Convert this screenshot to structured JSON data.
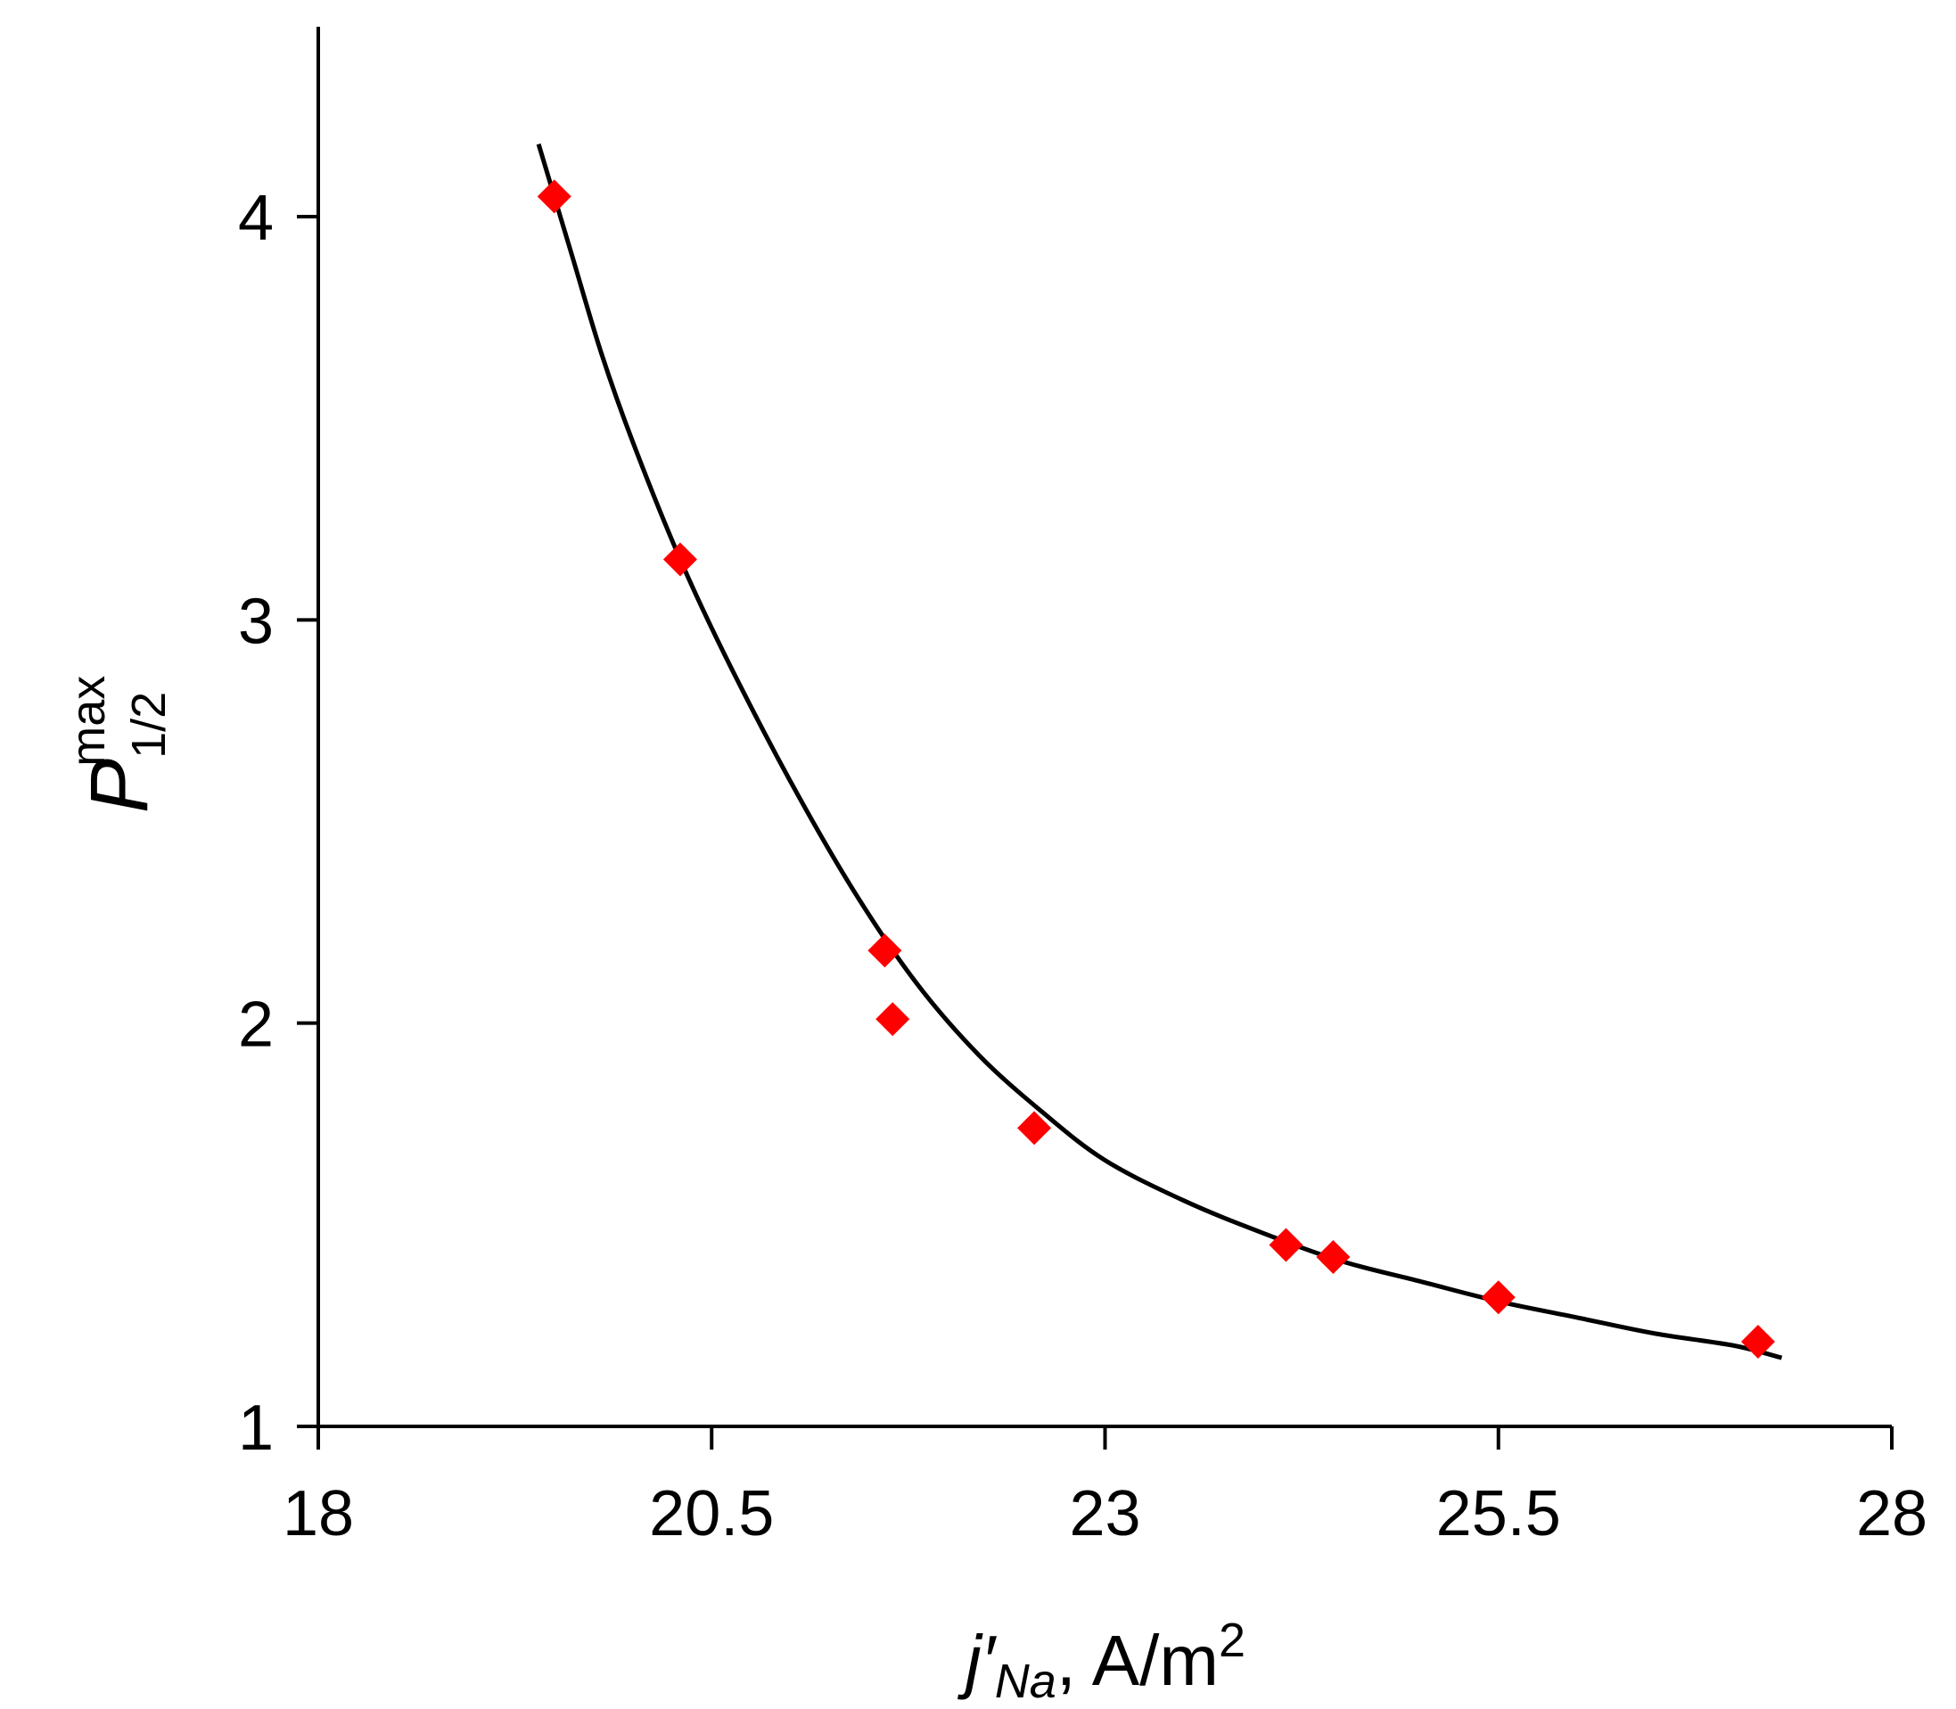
{
  "chart_data": {
    "type": "scatter",
    "title": "",
    "xlabel": {
      "main": "j′",
      "sub": "Na",
      "unit": ", A/m",
      "sup": "2"
    },
    "ylabel": {
      "main": "P",
      "sub": "1/2",
      "sup": "max"
    },
    "xlim": [
      18,
      28
    ],
    "ylim": [
      1,
      4.4
    ],
    "x_ticks": [
      18,
      20.5,
      23,
      25.5,
      28
    ],
    "y_ticks": [
      1,
      2,
      3,
      4
    ],
    "x_tick_labels": [
      "18",
      "20.5",
      "23",
      "25.5",
      "28"
    ],
    "y_tick_labels": [
      "1",
      "2",
      "3",
      "4"
    ],
    "grid": false,
    "points": [
      {
        "x": 19.5,
        "y": 4.05
      },
      {
        "x": 20.3,
        "y": 3.15
      },
      {
        "x": 21.6,
        "y": 2.18
      },
      {
        "x": 21.65,
        "y": 2.01
      },
      {
        "x": 22.55,
        "y": 1.74
      },
      {
        "x": 24.15,
        "y": 1.45
      },
      {
        "x": 24.45,
        "y": 1.42
      },
      {
        "x": 25.5,
        "y": 1.32
      },
      {
        "x": 27.15,
        "y": 1.21
      }
    ],
    "fit_curve": [
      {
        "x": 19.4,
        "y": 4.18
      },
      {
        "x": 19.6,
        "y": 3.92
      },
      {
        "x": 19.8,
        "y": 3.66
      },
      {
        "x": 20.0,
        "y": 3.44
      },
      {
        "x": 20.3,
        "y": 3.15
      },
      {
        "x": 20.6,
        "y": 2.9
      },
      {
        "x": 21.0,
        "y": 2.6
      },
      {
        "x": 21.4,
        "y": 2.33
      },
      {
        "x": 21.8,
        "y": 2.1
      },
      {
        "x": 22.2,
        "y": 1.92
      },
      {
        "x": 22.6,
        "y": 1.78
      },
      {
        "x": 23.0,
        "y": 1.66
      },
      {
        "x": 23.5,
        "y": 1.56
      },
      {
        "x": 24.0,
        "y": 1.48
      },
      {
        "x": 24.5,
        "y": 1.41
      },
      {
        "x": 25.0,
        "y": 1.36
      },
      {
        "x": 25.5,
        "y": 1.31
      },
      {
        "x": 26.0,
        "y": 1.27
      },
      {
        "x": 26.5,
        "y": 1.23
      },
      {
        "x": 27.0,
        "y": 1.2
      },
      {
        "x": 27.3,
        "y": 1.17
      }
    ],
    "colors": {
      "points": "#ff0000",
      "curve": "#000000"
    }
  }
}
